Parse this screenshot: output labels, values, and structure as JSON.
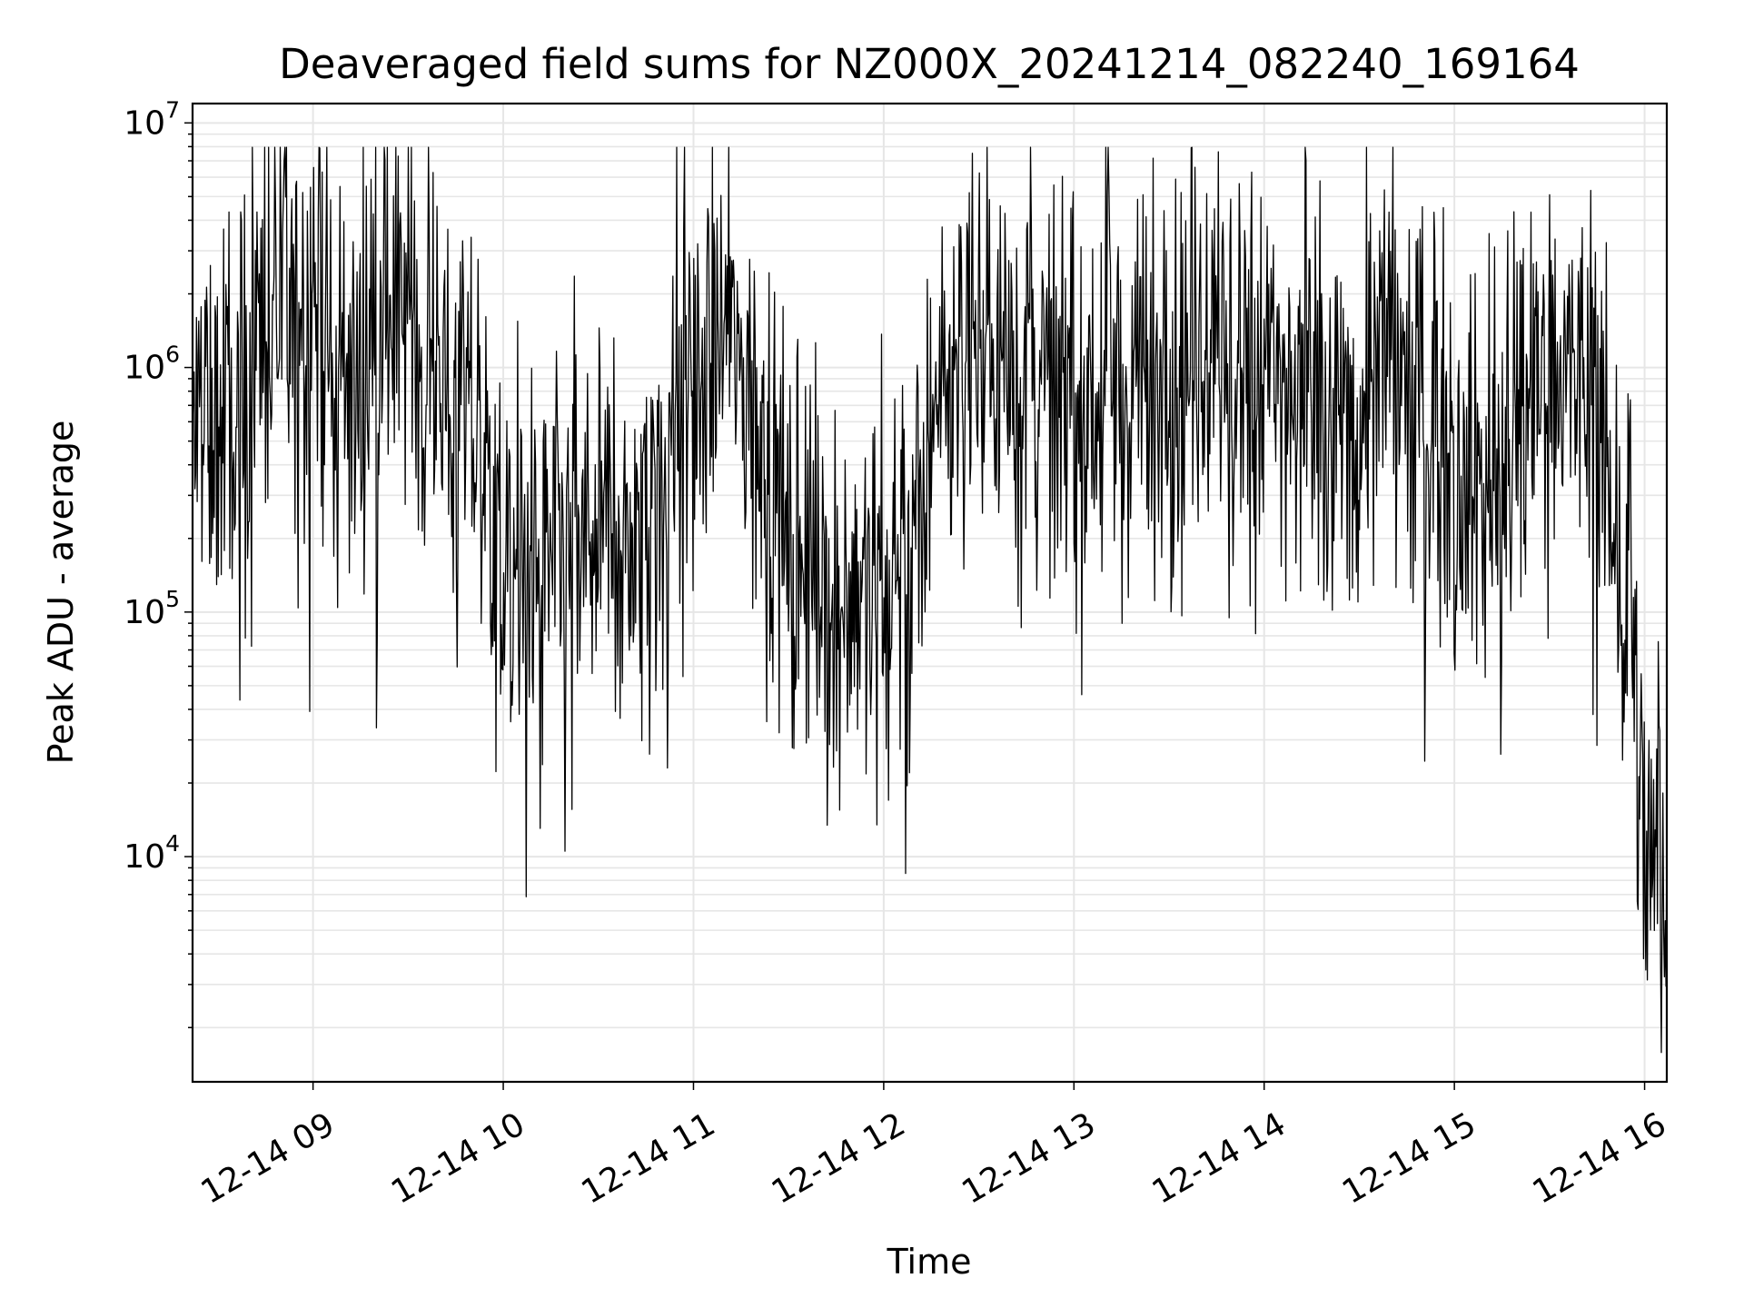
{
  "chart_data": {
    "type": "line",
    "title": "Deaveraged field sums for NZ000X_20241214_082240_169164",
    "xlabel": "Time",
    "ylabel": "Peak ADU - average",
    "yscale": "log",
    "grid": true,
    "legend": "none",
    "line_color": "#000000",
    "grid_color": "#e6e6e6",
    "xlim": [
      "2024-12-14 08:22",
      "2024-12-14 16:07"
    ],
    "ylim": [
      1200,
      12000000
    ],
    "x_ticks": [
      "12-14 09",
      "12-14 10",
      "12-14 11",
      "12-14 12",
      "12-14 13",
      "12-14 14",
      "12-14 15",
      "12-14 16"
    ],
    "y_ticks": [
      {
        "base": "10",
        "exp": "4",
        "value": 10000
      },
      {
        "base": "10",
        "exp": "5",
        "value": 100000
      },
      {
        "base": "10",
        "exp": "6",
        "value": 1000000
      },
      {
        "base": "10",
        "exp": "7",
        "value": 10000000
      }
    ],
    "series": [
      {
        "x": [
          "2024-12-14 08:22",
          "2024-12-14 08:30",
          "2024-12-14 08:40",
          "2024-12-14 08:50",
          "2024-12-14 09:00",
          "2024-12-14 09:10",
          "2024-12-14 09:20",
          "2024-12-14 09:30",
          "2024-12-14 09:40",
          "2024-12-14 09:50",
          "2024-12-14 10:00",
          "2024-12-14 10:10",
          "2024-12-14 10:20",
          "2024-12-14 10:30",
          "2024-12-14 10:40",
          "2024-12-14 10:50",
          "2024-12-14 11:00",
          "2024-12-14 11:10",
          "2024-12-14 11:20",
          "2024-12-14 11:30",
          "2024-12-14 11:40",
          "2024-12-14 11:50",
          "2024-12-14 12:00",
          "2024-12-14 12:10",
          "2024-12-14 12:20",
          "2024-12-14 12:30",
          "2024-12-14 12:40",
          "2024-12-14 12:50",
          "2024-12-14 13:00",
          "2024-12-14 13:10",
          "2024-12-14 13:20",
          "2024-12-14 13:30",
          "2024-12-14 13:40",
          "2024-12-14 13:50",
          "2024-12-14 14:00",
          "2024-12-14 14:10",
          "2024-12-14 14:20",
          "2024-12-14 14:30",
          "2024-12-14 14:40",
          "2024-12-14 14:50",
          "2024-12-14 15:00",
          "2024-12-14 15:10",
          "2024-12-14 15:20",
          "2024-12-14 15:30",
          "2024-12-14 15:40",
          "2024-12-14 15:45",
          "2024-12-14 15:50",
          "2024-12-14 15:55",
          "2024-12-14 15:57",
          "2024-12-14 16:00",
          "2024-12-14 16:03",
          "2024-12-14 16:07"
        ],
        "y": [
          500000,
          600000,
          1200000,
          1800000,
          2000000,
          700000,
          1500000,
          1800000,
          900000,
          600000,
          180000,
          150000,
          170000,
          200000,
          230000,
          350000,
          1000000,
          1500000,
          700000,
          200000,
          120000,
          130000,
          150000,
          250000,
          1000000,
          1200000,
          1100000,
          800000,
          700000,
          900000,
          800000,
          1100000,
          1300000,
          1100000,
          800000,
          700000,
          600000,
          900000,
          1300000,
          800000,
          500000,
          300000,
          600000,
          1300000,
          900000,
          700000,
          250000,
          150000,
          50000,
          15000,
          9000,
          10000
        ]
      }
    ]
  }
}
